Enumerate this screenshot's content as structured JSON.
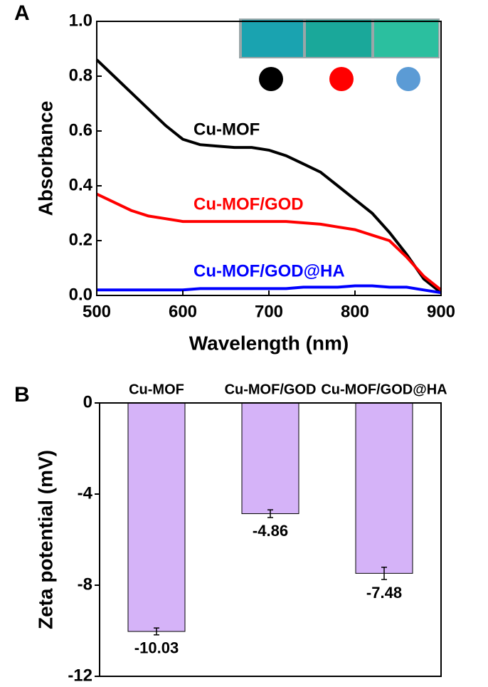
{
  "chart_data": [
    {
      "type": "line",
      "panel": "A",
      "x_label": "Wavelength (nm)",
      "y_label": "Absorbance",
      "x": [
        500,
        520,
        540,
        560,
        580,
        600,
        620,
        640,
        660,
        680,
        700,
        720,
        740,
        760,
        780,
        800,
        820,
        840,
        860,
        880,
        900
      ],
      "series": [
        {
          "name": "Cu-MOF",
          "color": "#000000",
          "values": [
            0.86,
            0.8,
            0.74,
            0.68,
            0.62,
            0.57,
            0.55,
            0.545,
            0.54,
            0.54,
            0.53,
            0.51,
            0.48,
            0.45,
            0.4,
            0.35,
            0.3,
            0.23,
            0.15,
            0.06,
            0.01
          ]
        },
        {
          "name": "Cu-MOF/GOD",
          "color": "#ff0000",
          "values": [
            0.37,
            0.34,
            0.31,
            0.29,
            0.28,
            0.27,
            0.27,
            0.27,
            0.27,
            0.27,
            0.27,
            0.27,
            0.265,
            0.26,
            0.25,
            0.24,
            0.22,
            0.2,
            0.14,
            0.07,
            0.02
          ]
        },
        {
          "name": "Cu-MOF/GOD@HA",
          "color": "#0000ff",
          "values": [
            0.02,
            0.02,
            0.02,
            0.02,
            0.02,
            0.02,
            0.025,
            0.025,
            0.025,
            0.025,
            0.025,
            0.025,
            0.03,
            0.03,
            0.03,
            0.035,
            0.035,
            0.03,
            0.03,
            0.02,
            0.01
          ]
        }
      ],
      "xlim": [
        500,
        900
      ],
      "xticks": [
        500,
        600,
        700,
        800,
        900
      ],
      "ylim": [
        0,
        1
      ],
      "yticks": [
        {
          "value": 0,
          "label": "0.0"
        },
        0.2,
        0.4,
        0.6,
        0.8,
        {
          "value": 1,
          "label": "1.0"
        }
      ]
    },
    {
      "type": "bar",
      "panel": "B",
      "y_label": "Zeta potential (mV)",
      "categories": [
        "Cu-MOF",
        "Cu-MOF/GOD",
        "Cu-MOF/GOD@HA"
      ],
      "values": [
        -10.03,
        -4.86,
        -7.48
      ],
      "errors": [
        0.15,
        0.17,
        0.27
      ],
      "color": "#d5b3f8",
      "ylim": [
        -12,
        0
      ],
      "yticks": [
        0,
        -4,
        -8,
        -12
      ]
    }
  ]
}
